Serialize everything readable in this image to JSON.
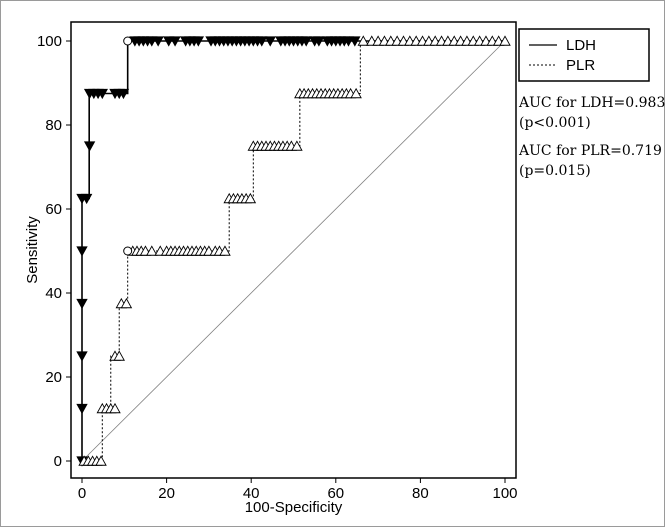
{
  "chart_data": {
    "type": "line",
    "title": "",
    "xlabel": "100-Specificity",
    "ylabel": "Sensitivity",
    "xlim": [
      0,
      100
    ],
    "ylim": [
      0,
      100
    ],
    "xticks": [
      "0",
      "20",
      "40",
      "60",
      "80",
      "100"
    ],
    "yticks": [
      "0",
      "20",
      "40",
      "60",
      "80",
      "100"
    ],
    "grid": false,
    "legend_position": "right",
    "diagonal_reference": true,
    "series": [
      {
        "name": "LDH",
        "line_style": "solid",
        "marker": "filled-triangle-down",
        "color": "#000000",
        "x": [
          0,
          0,
          1.7,
          1.7,
          10.8,
          10.8,
          100
        ],
        "y": [
          0,
          62.5,
          62.5,
          87.5,
          87.5,
          100,
          100
        ],
        "markers": [
          [
            0,
            0
          ],
          [
            0,
            12.5
          ],
          [
            0,
            25
          ],
          [
            0,
            37.5
          ],
          [
            0,
            50
          ],
          [
            0,
            62.5
          ],
          [
            1.1,
            62.5
          ],
          [
            1.8,
            75
          ],
          [
            1.8,
            87.5
          ],
          [
            2.8,
            87.5
          ],
          [
            3.8,
            87.5
          ],
          [
            4.8,
            87.5
          ],
          [
            7.8,
            87.5
          ],
          [
            8.8,
            87.5
          ],
          [
            9.8,
            87.5
          ],
          [
            12.5,
            100
          ],
          [
            13.5,
            100
          ],
          [
            14.5,
            100
          ],
          [
            15.5,
            100
          ],
          [
            16.5,
            100
          ],
          [
            18,
            100
          ],
          [
            20.5,
            100
          ],
          [
            22,
            100
          ],
          [
            24.5,
            100
          ],
          [
            25.5,
            100
          ],
          [
            26.5,
            100
          ],
          [
            27.5,
            100
          ],
          [
            30.5,
            100
          ],
          [
            31.5,
            100
          ],
          [
            32.5,
            100
          ],
          [
            33.5,
            100
          ],
          [
            34.5,
            100
          ],
          [
            35.5,
            100
          ],
          [
            36.5,
            100
          ],
          [
            37.5,
            100
          ],
          [
            38.5,
            100
          ],
          [
            39.5,
            100
          ],
          [
            40.5,
            100
          ],
          [
            41.5,
            100
          ],
          [
            42.5,
            100
          ],
          [
            44.5,
            100
          ],
          [
            47,
            100
          ],
          [
            48,
            100
          ],
          [
            49,
            100
          ],
          [
            50,
            100
          ],
          [
            51,
            100
          ],
          [
            52,
            100
          ],
          [
            53,
            100
          ],
          [
            55,
            100
          ],
          [
            56,
            100
          ],
          [
            58,
            100
          ],
          [
            59,
            100
          ],
          [
            60,
            100
          ],
          [
            61,
            100
          ],
          [
            62,
            100
          ],
          [
            63,
            100
          ],
          [
            64.5,
            100
          ]
        ],
        "open_circle": [
          [
            10.8,
            100
          ]
        ]
      },
      {
        "name": "PLR",
        "line_style": "dashed",
        "marker": "open-triangle-up",
        "color": "#000000",
        "x": [
          0,
          4.8,
          4.8,
          6.8,
          6.8,
          8.8,
          8.8,
          10.8,
          10.8,
          34.8,
          34.8,
          40.5,
          40.5,
          51.5,
          51.5,
          65.8,
          65.8,
          100
        ],
        "y": [
          0,
          0,
          12.5,
          12.5,
          25,
          25,
          37.5,
          37.5,
          50,
          50,
          62.5,
          62.5,
          75,
          75,
          87.5,
          87.5,
          100,
          100
        ],
        "markers": [
          [
            0.5,
            0
          ],
          [
            1.5,
            0
          ],
          [
            2.5,
            0
          ],
          [
            3.5,
            0
          ],
          [
            4.5,
            0
          ],
          [
            4.8,
            12.5
          ],
          [
            5.8,
            12.5
          ],
          [
            6.8,
            12.5
          ],
          [
            7.8,
            12.5
          ],
          [
            7.8,
            25
          ],
          [
            8.8,
            25
          ],
          [
            9.3,
            37.5
          ],
          [
            10.5,
            37.5
          ],
          [
            12,
            50
          ],
          [
            13,
            50
          ],
          [
            14,
            50
          ],
          [
            15,
            50
          ],
          [
            16.5,
            50
          ],
          [
            18.5,
            50
          ],
          [
            20,
            50
          ],
          [
            21,
            50
          ],
          [
            22,
            50
          ],
          [
            23,
            50
          ],
          [
            24,
            50
          ],
          [
            25,
            50
          ],
          [
            26,
            50
          ],
          [
            27,
            50
          ],
          [
            28,
            50
          ],
          [
            29,
            50
          ],
          [
            30,
            50
          ],
          [
            31.5,
            50
          ],
          [
            32.5,
            50
          ],
          [
            33.8,
            50
          ],
          [
            34.8,
            62.5
          ],
          [
            35.8,
            62.5
          ],
          [
            36.8,
            62.5
          ],
          [
            37.8,
            62.5
          ],
          [
            38.8,
            62.5
          ],
          [
            39.8,
            62.5
          ],
          [
            40.5,
            75
          ],
          [
            41.5,
            75
          ],
          [
            42.5,
            75
          ],
          [
            43.5,
            75
          ],
          [
            44.5,
            75
          ],
          [
            45.5,
            75
          ],
          [
            46.5,
            75
          ],
          [
            47.5,
            75
          ],
          [
            48.5,
            75
          ],
          [
            49.5,
            75
          ],
          [
            50.8,
            75
          ],
          [
            51.5,
            87.5
          ],
          [
            52.5,
            87.5
          ],
          [
            53.5,
            87.5
          ],
          [
            54.5,
            87.5
          ],
          [
            55.5,
            87.5
          ],
          [
            56.5,
            87.5
          ],
          [
            57.5,
            87.5
          ],
          [
            58.5,
            87.5
          ],
          [
            59.5,
            87.5
          ],
          [
            60.5,
            87.5
          ],
          [
            61.5,
            87.5
          ],
          [
            62.5,
            87.5
          ],
          [
            63.5,
            87.5
          ],
          [
            64.8,
            87.5
          ],
          [
            66.5,
            100
          ],
          [
            68.5,
            100
          ],
          [
            70,
            100
          ],
          [
            71.5,
            100
          ],
          [
            73,
            100
          ],
          [
            74.5,
            100
          ],
          [
            76,
            100
          ],
          [
            77.5,
            100
          ],
          [
            79,
            100
          ],
          [
            80.5,
            100
          ],
          [
            82,
            100
          ],
          [
            83.5,
            100
          ],
          [
            85,
            100
          ],
          [
            86.5,
            100
          ],
          [
            88,
            100
          ],
          [
            89.5,
            100
          ],
          [
            91,
            100
          ],
          [
            92.5,
            100
          ],
          [
            94,
            100
          ],
          [
            95.5,
            100
          ],
          [
            97,
            100
          ],
          [
            98.5,
            100
          ],
          [
            100,
            100
          ]
        ],
        "open_circle": [
          [
            10.8,
            50
          ]
        ]
      }
    ],
    "annotations": [
      "AUC for LDH=0.983\n(p<0.001)",
      "AUC for PLR=0.719\n(p=0.015)"
    ]
  }
}
